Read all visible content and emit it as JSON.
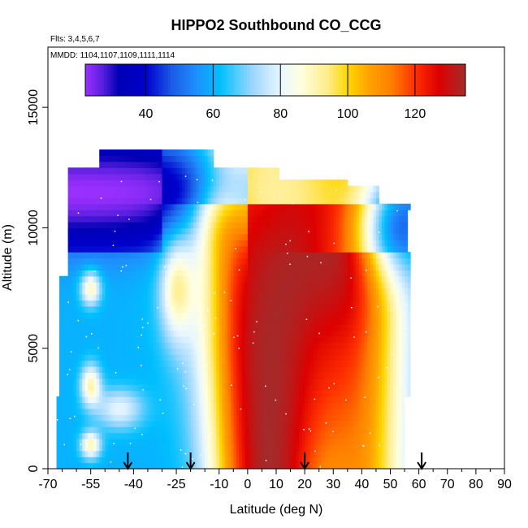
{
  "chart_data": {
    "type": "heatmap",
    "title": "HIPPO2 Southbound CO_CCG",
    "subtitle_lines": [
      "Flts: 3,4,5,6,7",
      "MMDD: 1104,1107,1109,1111,1114"
    ],
    "xlabel": "Latitude (deg N)",
    "ylabel": "Altitude (m)",
    "xlim": [
      -70,
      90
    ],
    "ylim": [
      0,
      17500
    ],
    "x_ticks": [
      -70,
      -55,
      -40,
      -25,
      -10,
      0,
      10,
      20,
      30,
      40,
      50,
      60,
      70,
      80,
      90
    ],
    "x_tick_labels": [
      "-70",
      "-55",
      "-40",
      "-25",
      "-10",
      "0",
      "10",
      "20",
      "30",
      "40",
      "50",
      "60",
      "70",
      "80",
      "90"
    ],
    "x_minor_ticks": [
      -65,
      -60,
      -50,
      -45,
      -35,
      -30,
      -20,
      -15,
      -5,
      5,
      15,
      25,
      35,
      45,
      55,
      65,
      75,
      85
    ],
    "y_ticks": [
      0,
      5000,
      10000,
      15000
    ],
    "y_tick_labels": [
      "0",
      "5000",
      "10000",
      "15000"
    ],
    "colorbar": {
      "range": [
        22,
        135
      ],
      "ticks": [
        40,
        60,
        80,
        100,
        120
      ],
      "tick_labels": [
        "40",
        "60",
        "80",
        "100",
        "120"
      ],
      "stops": [
        {
          "v": 22,
          "c": "#9b30ff"
        },
        {
          "v": 27,
          "c": "#5a1fe0"
        },
        {
          "v": 32,
          "c": "#0000b4"
        },
        {
          "v": 40,
          "c": "#0000cd"
        },
        {
          "v": 48,
          "c": "#1a5ee8"
        },
        {
          "v": 55,
          "c": "#1e90ff"
        },
        {
          "v": 62,
          "c": "#00bfff"
        },
        {
          "v": 72,
          "c": "#9fd8ff"
        },
        {
          "v": 80,
          "c": "#e8f6ff"
        },
        {
          "v": 86,
          "c": "#ffffe0"
        },
        {
          "v": 94,
          "c": "#ffec8b"
        },
        {
          "v": 100,
          "c": "#ffd700"
        },
        {
          "v": 106,
          "c": "#ffa500"
        },
        {
          "v": 113,
          "c": "#ff7f00"
        },
        {
          "v": 120,
          "c": "#ff3000"
        },
        {
          "v": 127,
          "c": "#dd0000"
        },
        {
          "v": 135,
          "c": "#a52a2a"
        }
      ]
    },
    "flight_arrows_latitude": [
      -42,
      -20,
      20,
      61
    ],
    "domain_bounds": {
      "alt_step_m": 250,
      "rows": [
        {
          "alt": 0,
          "lat_min": -67,
          "lat_max": 55
        },
        {
          "alt": 3000,
          "lat_min": -66,
          "lat_max": 57
        },
        {
          "alt": 6000,
          "lat_min": -66,
          "lat_max": 57
        },
        {
          "alt": 8000,
          "lat_min": -63,
          "lat_max": 57
        },
        {
          "alt": 9000,
          "lat_min": -63,
          "lat_max": 56
        },
        {
          "alt": 10000,
          "lat_min": -63,
          "lat_max": 56
        },
        {
          "alt": 10750,
          "lat_min": -63,
          "lat_max": 57
        },
        {
          "alt": 11000,
          "lat_min": -63,
          "lat_max": 46
        },
        {
          "alt": 11750,
          "lat_min": -63,
          "lat_max": 35
        },
        {
          "alt": 12000,
          "lat_min": -63,
          "lat_max": 11
        },
        {
          "alt": 12500,
          "lat_min": -52,
          "lat_max": -12
        },
        {
          "alt": 12750,
          "lat_min": -52,
          "lat_max": -12
        },
        {
          "alt": 13000,
          "lat_min": -52,
          "lat_max": -12
        }
      ]
    },
    "field_description_values": {
      "upper_southern_hemisphere": 42,
      "tropics_surface_to_upper": 135,
      "northern_midlatitudes": 115,
      "southern_lower_troposphere": 60,
      "equatorial_transition": 82
    }
  },
  "colors": {
    "axis": "#000000",
    "background": "#ffffff",
    "data_point": "#ffffff"
  }
}
